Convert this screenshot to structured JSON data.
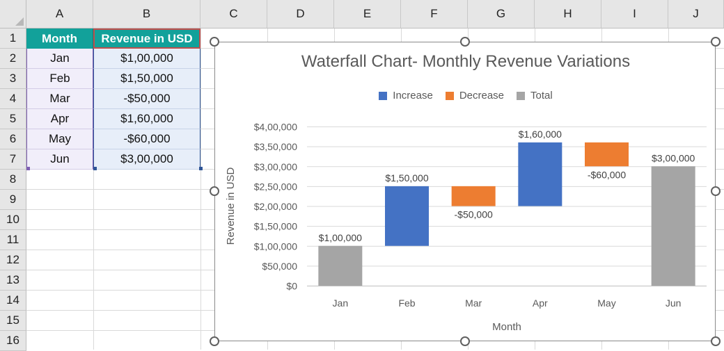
{
  "columns": [
    "A",
    "B",
    "C",
    "D",
    "E",
    "F",
    "G",
    "H",
    "I",
    "J"
  ],
  "rows": [
    "1",
    "2",
    "3",
    "4",
    "5",
    "6",
    "7",
    "8",
    "9",
    "10",
    "11",
    "12",
    "13",
    "14",
    "15",
    "16"
  ],
  "table": {
    "headers": [
      "Month",
      "Revenue in USD"
    ],
    "rows": [
      {
        "month": "Jan",
        "revenue": "$1,00,000"
      },
      {
        "month": "Feb",
        "revenue": "$1,50,000"
      },
      {
        "month": "Mar",
        "revenue": "-$50,000"
      },
      {
        "month": "Apr",
        "revenue": "$1,60,000"
      },
      {
        "month": "May",
        "revenue": "-$60,000"
      },
      {
        "month": "Jun",
        "revenue": "$3,00,000"
      }
    ]
  },
  "colors": {
    "header_fill": "#12a19a",
    "increase": "#4472c4",
    "decrease": "#ed7d31",
    "total": "#a5a5a5"
  },
  "chart_data": {
    "type": "bar",
    "subtype": "waterfall",
    "title": "Waterfall Chart- Monthly Revenue Variations",
    "xlabel": "Month",
    "ylabel": "Revenue in USD",
    "categories": [
      "Jan",
      "Feb",
      "Mar",
      "Apr",
      "May",
      "Jun"
    ],
    "bars": [
      {
        "start": 0,
        "end": 100000,
        "kind": "total",
        "label": "$1,00,000"
      },
      {
        "start": 100000,
        "end": 250000,
        "kind": "increase",
        "label": "$1,50,000"
      },
      {
        "start": 250000,
        "end": 200000,
        "kind": "decrease",
        "label": "-$50,000"
      },
      {
        "start": 200000,
        "end": 360000,
        "kind": "increase",
        "label": "$1,60,000"
      },
      {
        "start": 360000,
        "end": 300000,
        "kind": "decrease",
        "label": "-$60,000"
      },
      {
        "start": 0,
        "end": 300000,
        "kind": "total",
        "label": "$3,00,000"
      }
    ],
    "ylim": [
      0,
      400000
    ],
    "yticks": [
      0,
      50000,
      100000,
      150000,
      200000,
      250000,
      300000,
      350000,
      400000
    ],
    "ytick_labels": [
      "$0",
      "$50,000",
      "$1,00,000",
      "$1,50,000",
      "$2,00,000",
      "$2,50,000",
      "$3,00,000",
      "$3,50,000",
      "$4,00,000"
    ],
    "legend": [
      {
        "name": "Increase",
        "kind": "increase"
      },
      {
        "name": "Decrease",
        "kind": "decrease"
      },
      {
        "name": "Total",
        "kind": "total"
      }
    ],
    "legend_position": "top",
    "grid": true
  }
}
